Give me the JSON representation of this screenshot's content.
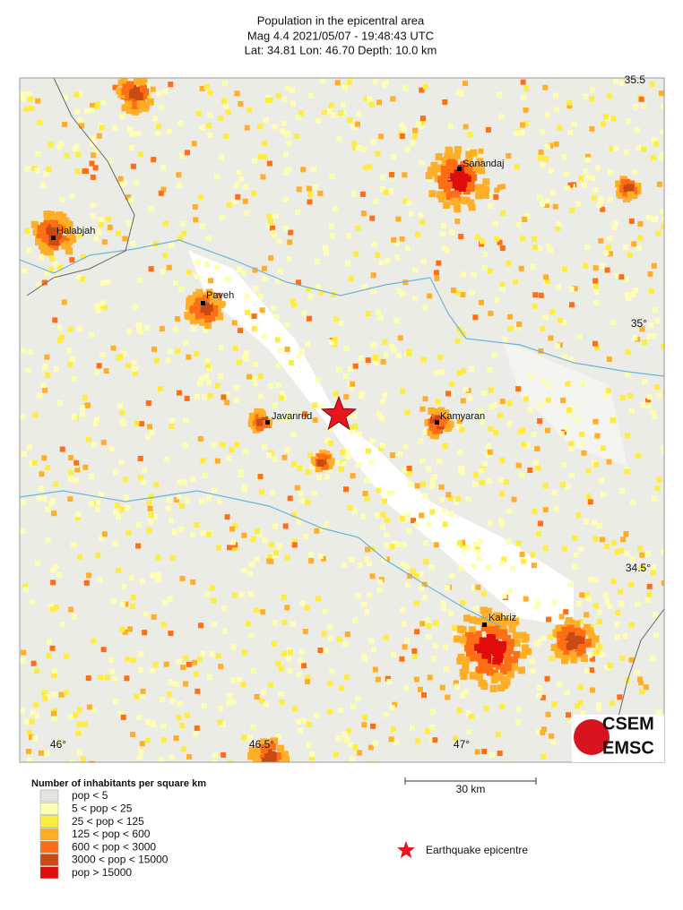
{
  "header": {
    "title": "Population in the epicentral area",
    "event": "Mag 4.4  2021/05/07 - 19:48:43 UTC",
    "location": "Lat: 34.81    Lon:  46.70     Depth:  10.0 km"
  },
  "map": {
    "cities": [
      {
        "label": "Sanandaj"
      },
      {
        "label": "Halabjah"
      },
      {
        "label": "Paveh"
      },
      {
        "label": "Javanrud"
      },
      {
        "label": "Kamyaran"
      },
      {
        "label": "Kahriz"
      }
    ],
    "lat_labels": [
      "35.5",
      "35°",
      "34.5°"
    ],
    "lon_labels": [
      "46°",
      "46.5°",
      "47°"
    ],
    "epicentre_color": "#e8141e"
  },
  "scale_bar": {
    "label": "30 km"
  },
  "legend": {
    "title": "Number of inhabitants per square km",
    "items": [
      {
        "label": "pop < 5",
        "color": "#e4e4de"
      },
      {
        "label": "5 < pop < 25",
        "color": "#ffffb4"
      },
      {
        "label": "25 < pop < 125",
        "color": "#ffec3c"
      },
      {
        "label": "125 < pop < 600",
        "color": "#ffae28"
      },
      {
        "label": "600 < pop < 3000",
        "color": "#ff6e14"
      },
      {
        "label": "3000 < pop < 15000",
        "color": "#c84b14"
      },
      {
        "label": "pop > 15000",
        "color": "#e00c0c"
      }
    ],
    "epicentre_label": "Earthquake epicentre"
  },
  "logo": {
    "top": "CSEM",
    "bottom": "EMSC"
  }
}
